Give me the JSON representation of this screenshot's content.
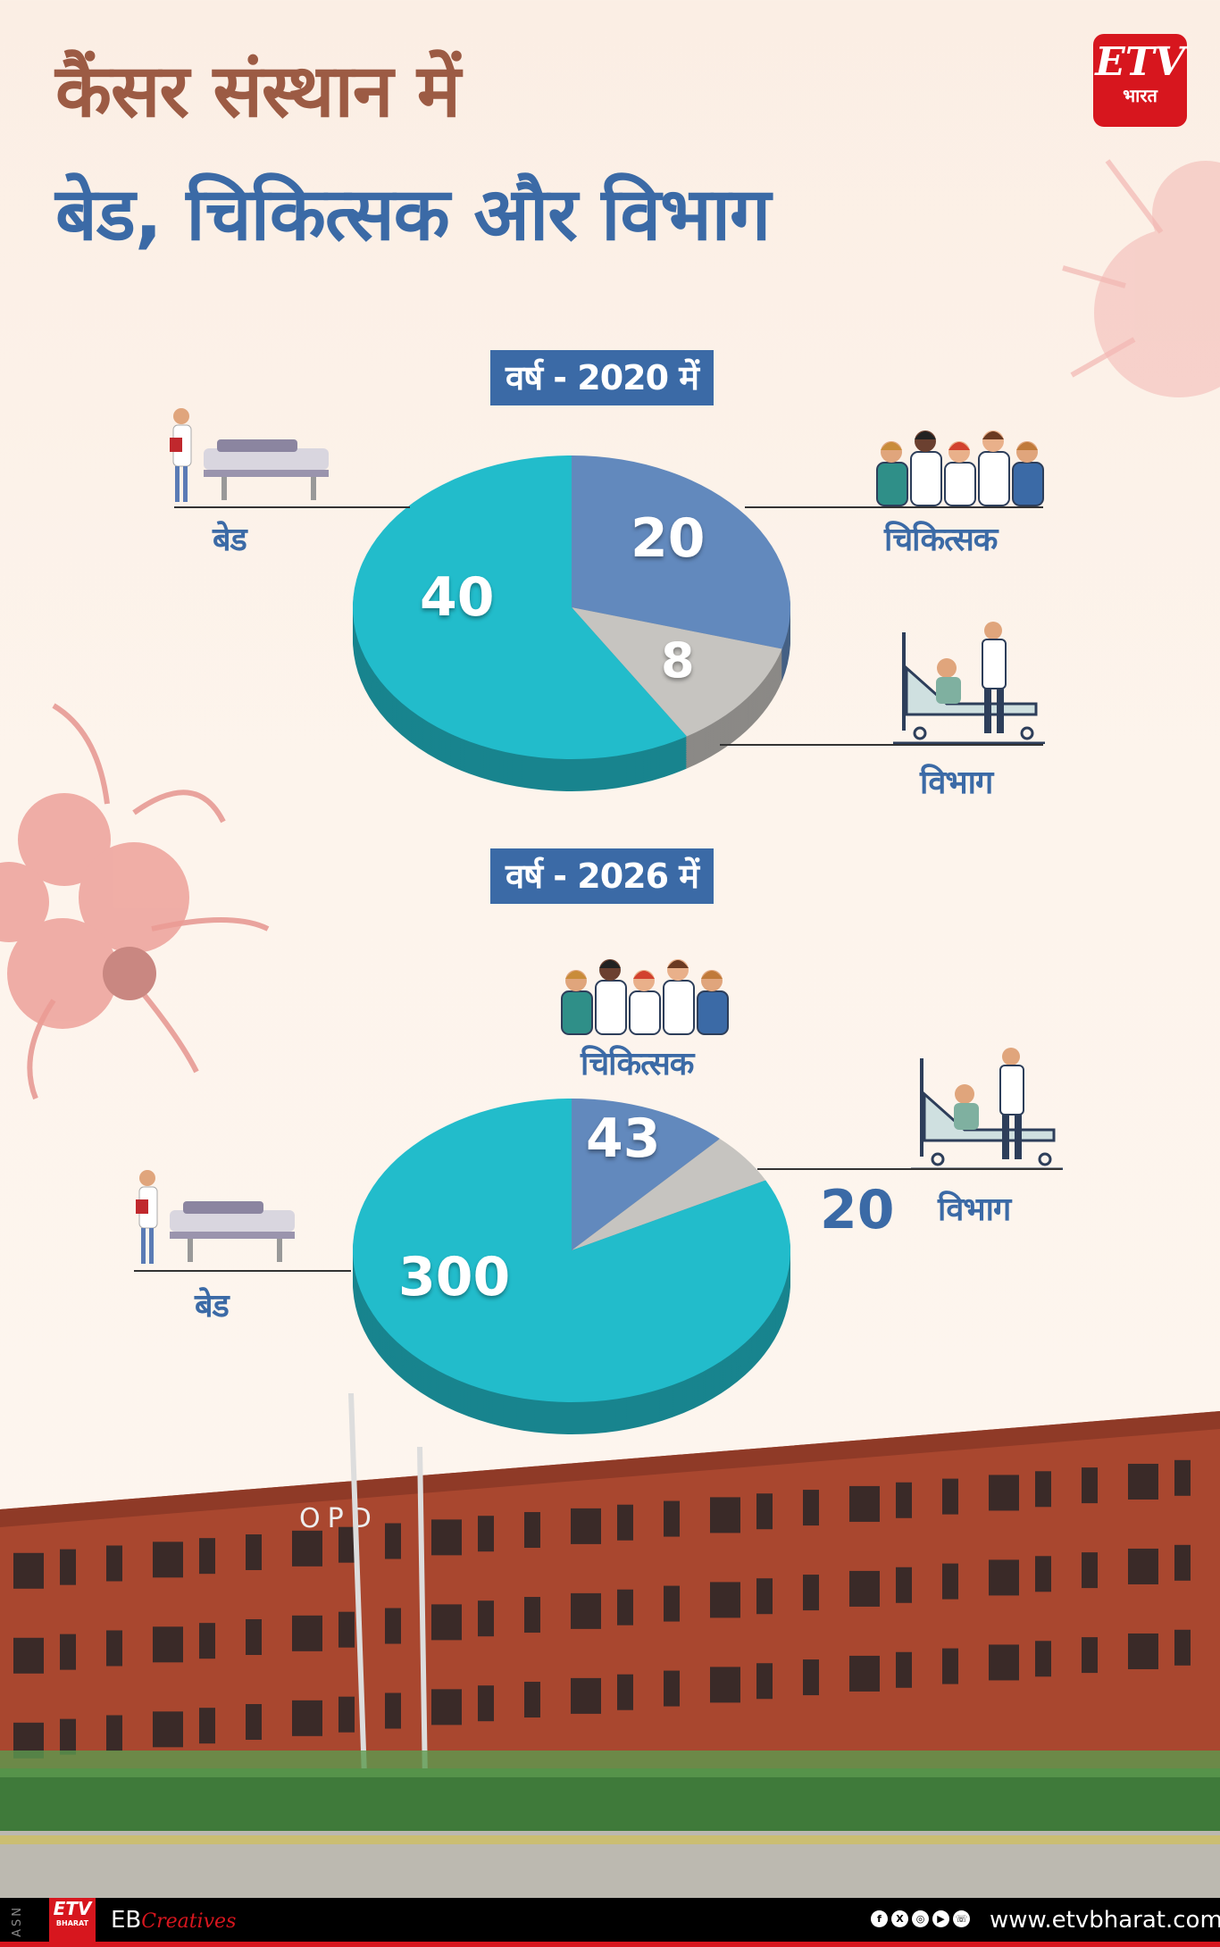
{
  "header": {
    "title_line1": "कैंसर संस्थान में",
    "title_line2": "बेड, चिकित्सक और विभाग",
    "logo_text": "ETV",
    "logo_subtext": "भारत"
  },
  "colors": {
    "beds": "#22bccb",
    "doctors": "#6289bd",
    "departments": "#c6c4c0",
    "title1": "#9c5b44",
    "title2": "#3b6aa6"
  },
  "chart_data": [
    {
      "type": "pie",
      "title": "वर्ष - 2020 में",
      "categories": [
        "चिकित्सक",
        "विभाग",
        "बेड"
      ],
      "values": [
        20,
        8,
        40
      ],
      "legend": "labels beside slices"
    },
    {
      "type": "pie",
      "title": "वर्ष - 2026 में",
      "categories": [
        "चिकित्सक",
        "विभाग",
        "बेड"
      ],
      "values": [
        43,
        20,
        300
      ],
      "legend": "labels beside slices"
    }
  ],
  "labels": {
    "beds": "बेड",
    "doctors": "चिकित्सक",
    "departments": "विभाग"
  },
  "photo": {
    "sign": "OPD"
  },
  "footer": {
    "side_text": "ASN",
    "logo_text": "ETV",
    "logo_sub": "BHARAT",
    "eb": "EB",
    "creatives": "Creatives",
    "social": [
      "f",
      "X",
      "◎",
      "▶",
      "☏"
    ],
    "site": "www.etvbharat.com"
  }
}
